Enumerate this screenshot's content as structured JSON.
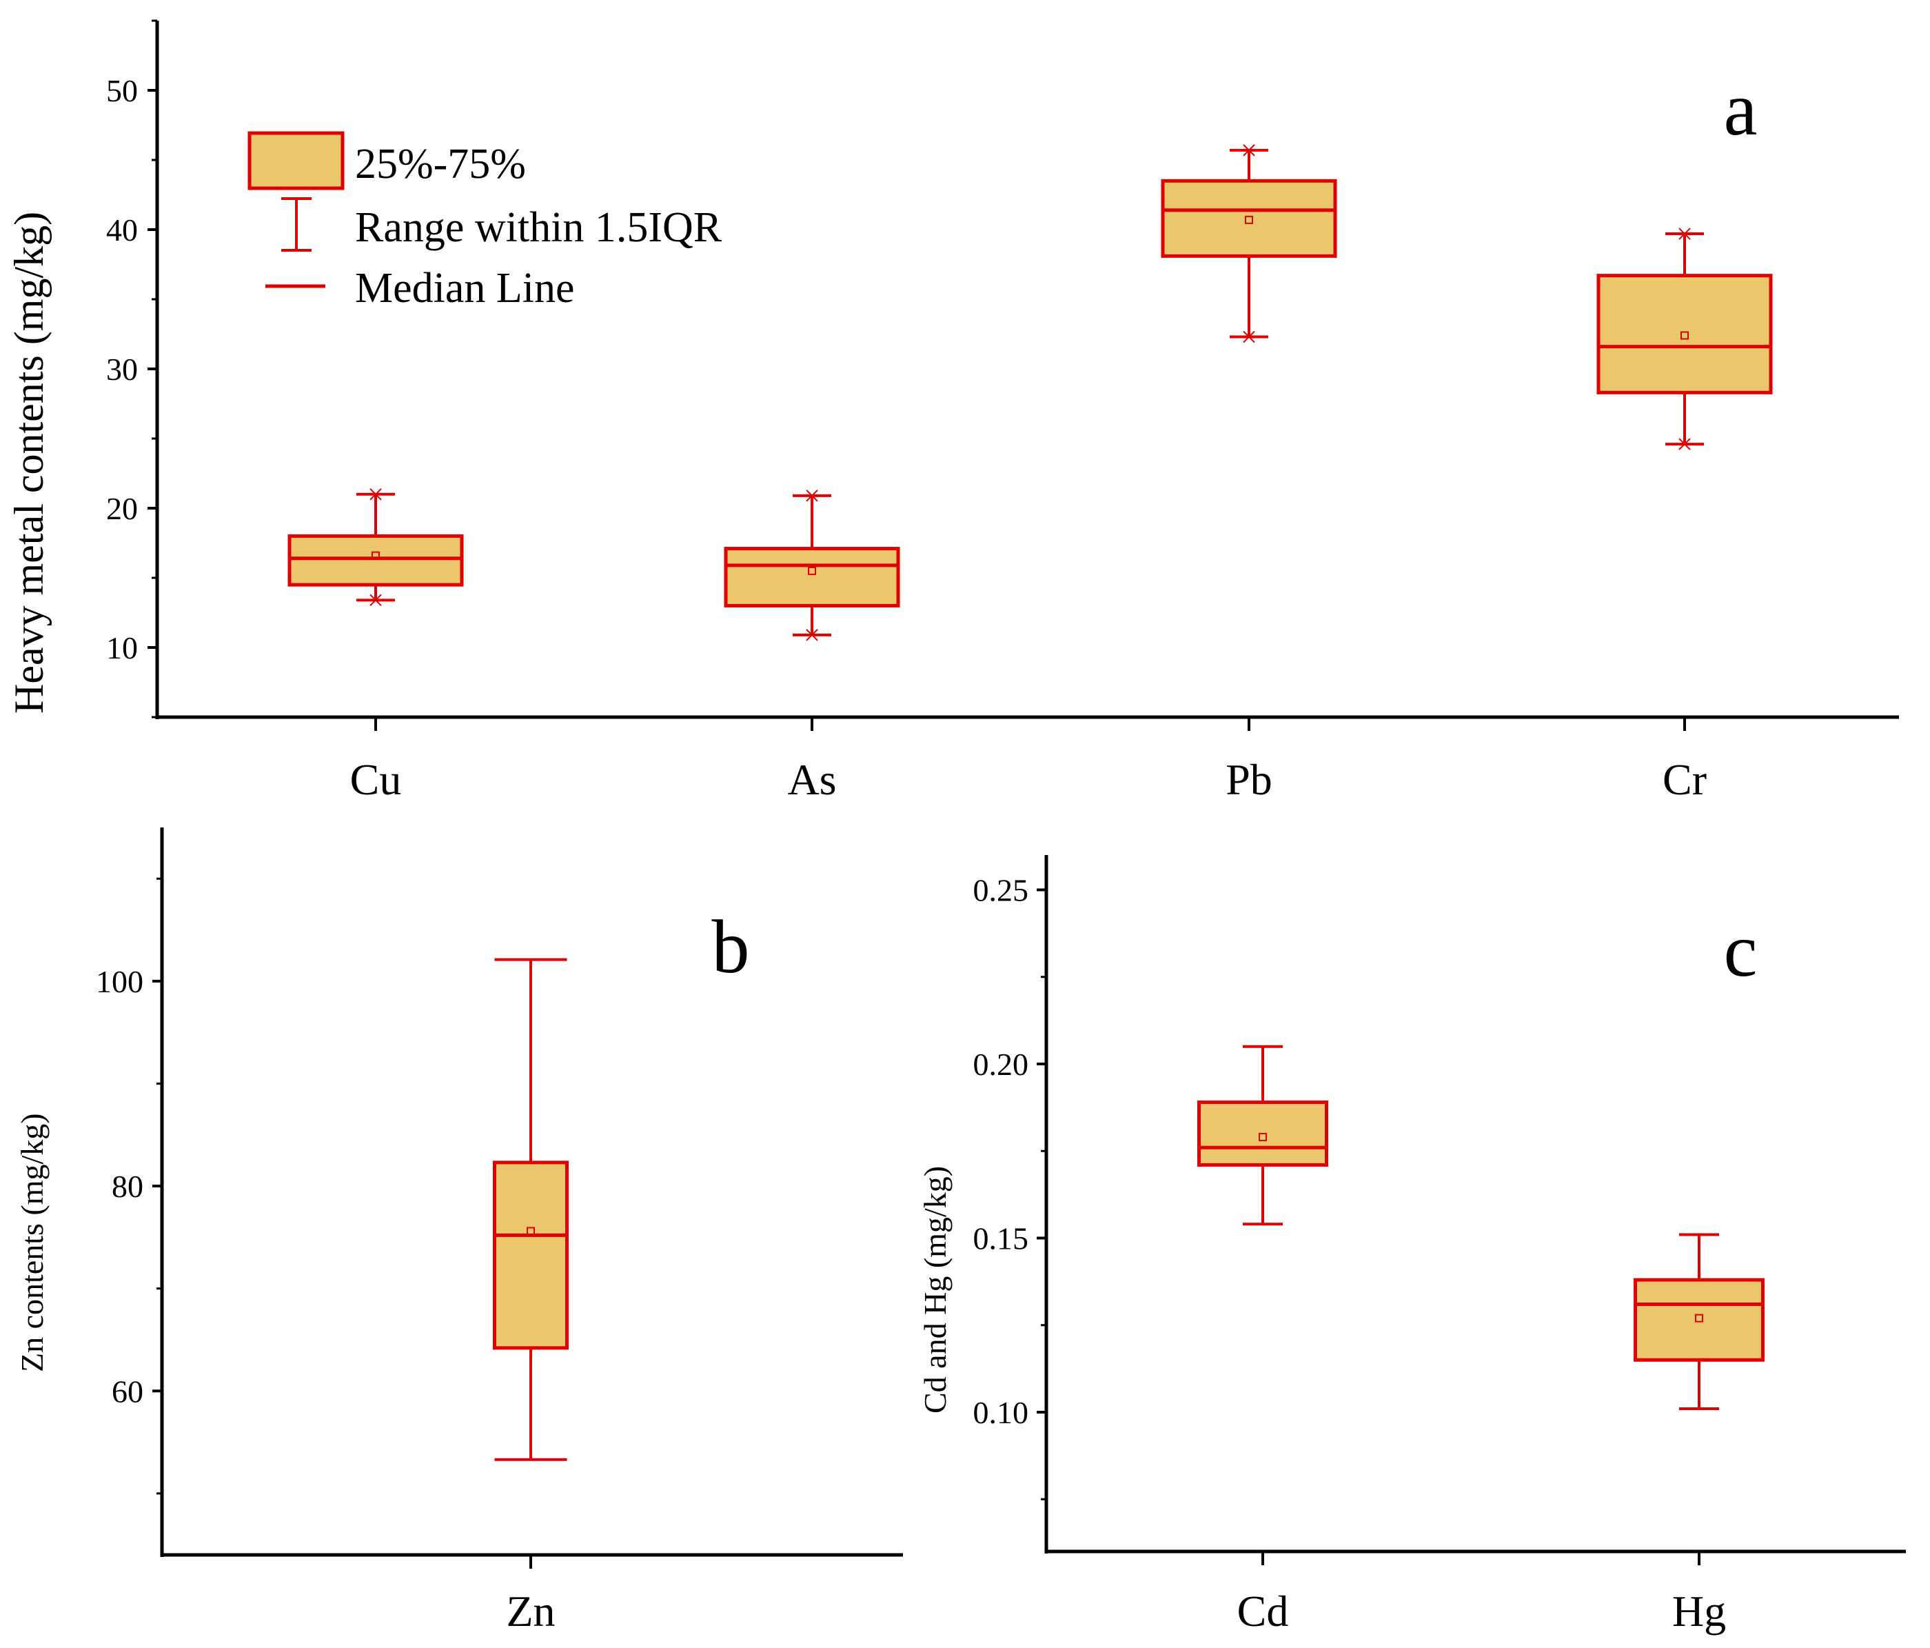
{
  "colors": {
    "box_fill": "#EBC66A",
    "box_edge": "#E00000",
    "axis": "#000000"
  },
  "legend": [
    {
      "kind": "box",
      "label": "25%-75%"
    },
    {
      "kind": "whisker",
      "label": "Range within 1.5IQR"
    },
    {
      "kind": "median",
      "label": "Median Line"
    }
  ],
  "chart_data": [
    {
      "id": "a",
      "type": "box",
      "panel_label": "a",
      "ylabel": "Heavy metal contents (mg/kg)",
      "ylim": [
        5,
        55
      ],
      "yticks": [
        10,
        20,
        30,
        40,
        50
      ],
      "categories": [
        "Cu",
        "As",
        "Pb",
        "Cr"
      ],
      "boxes": [
        {
          "name": "Cu",
          "min": 13.4,
          "q1": 14.5,
          "median": 16.4,
          "q3": 18.0,
          "max": 21.0,
          "mean": 16.6
        },
        {
          "name": "As",
          "min": 10.9,
          "q1": 13.0,
          "median": 15.9,
          "q3": 17.1,
          "max": 20.9,
          "mean": 15.5
        },
        {
          "name": "Pb",
          "min": 32.3,
          "q1": 38.1,
          "median": 41.4,
          "q3": 43.5,
          "max": 45.7,
          "mean": 40.7
        },
        {
          "name": "Cr",
          "min": 24.6,
          "q1": 28.3,
          "median": 31.6,
          "q3": 36.7,
          "max": 39.7,
          "mean": 32.4
        }
      ]
    },
    {
      "id": "b",
      "type": "box",
      "panel_label": "b",
      "ylabel": "Zn contents (mg/kg)",
      "ylim": [
        44,
        115
      ],
      "yticks": [
        60,
        80,
        100
      ],
      "categories": [
        "Zn"
      ],
      "boxes": [
        {
          "name": "Zn",
          "min": 53.3,
          "q1": 64.2,
          "median": 75.2,
          "q3": 82.3,
          "max": 102.1,
          "mean": 75.6
        }
      ]
    },
    {
      "id": "c",
      "type": "box",
      "panel_label": "c",
      "ylabel": "Cd and Hg (mg/kg)",
      "ylim": [
        0.06,
        0.26
      ],
      "yticks": [
        0.1,
        0.15,
        0.2,
        0.25
      ],
      "ytick_labels": [
        "0.10",
        "0.15",
        "0.20",
        "0.25"
      ],
      "categories": [
        "Cd",
        "Hg"
      ],
      "boxes": [
        {
          "name": "Cd",
          "min": 0.154,
          "q1": 0.171,
          "median": 0.176,
          "q3": 0.189,
          "max": 0.205,
          "mean": 0.179
        },
        {
          "name": "Hg",
          "min": 0.101,
          "q1": 0.115,
          "median": 0.131,
          "q3": 0.138,
          "max": 0.151,
          "mean": 0.127
        }
      ]
    }
  ]
}
